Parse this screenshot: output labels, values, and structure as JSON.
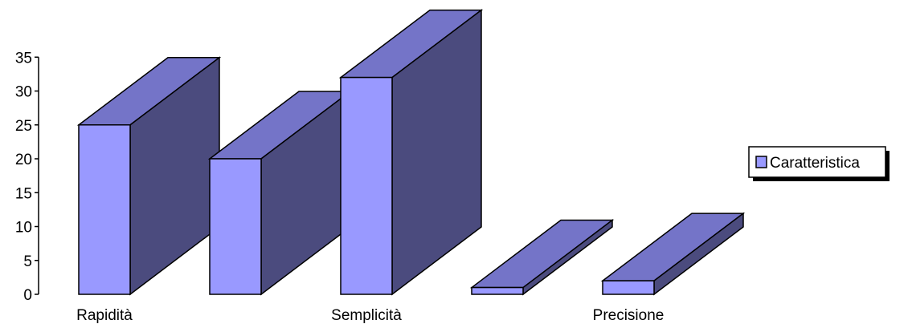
{
  "chart_data": {
    "type": "bar",
    "style": "3d-column",
    "categories": [
      "Rapidità",
      "",
      "Semplicità",
      "",
      "Precisione"
    ],
    "series": [
      {
        "name": "Caratteristica",
        "values": [
          25,
          20,
          32,
          1,
          2
        ]
      }
    ],
    "ylim": [
      0,
      35
    ],
    "yticks": [
      0,
      5,
      10,
      15,
      20,
      25,
      30,
      35
    ],
    "grid": false,
    "legend": "right",
    "colors": {
      "front": "#9999ff",
      "top": "#7474c8",
      "side": "#4b4b7e",
      "outline": "#000000"
    }
  }
}
